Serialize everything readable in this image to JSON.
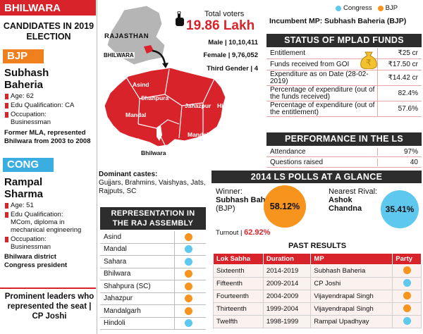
{
  "region": "BHILWARA",
  "candidates_title": "CANDIDATES IN 2019 ELECTION",
  "bjp": {
    "party": "BJP",
    "name": "Subhash Baheria",
    "age": "Age: 62",
    "edu": "Edu Qualification: CA",
    "occ_label": "Occupation:",
    "occ": "Businessman",
    "note": "Former MLA, represented Bhilwara from 2003 to 2008"
  },
  "cong": {
    "party": "CONG",
    "name": "Rampal Sharma",
    "age": "Age: 51",
    "edu_label": "Edu Qualification:",
    "edu": "MCom, diploma in mechanical engineering",
    "occ_label": "Occupation:",
    "occ": "Businessman",
    "note": "Bhilwara district Congress president"
  },
  "leaders": "Prominent leaders who represented the seat | CP Joshi",
  "map": {
    "state": "RAJASTHAN",
    "district": "BHILWARA",
    "areas": [
      "Asind",
      "Shahpura",
      "Jahazpur",
      "Hindoli",
      "Mandal",
      "Mandalgarh",
      "Sahara",
      "Bhilwara"
    ]
  },
  "voters": {
    "label": "Total voters",
    "value": "19.86 Lakh",
    "male": "Male | 10,10,411",
    "female": "Female | 9,76,052",
    "third": "Third Gender | 4"
  },
  "castes": {
    "label": "Dominant castes:",
    "list": "Gujjars, Brahmins, Vaishyas, Jats, Rajputs, SC"
  },
  "assembly": {
    "title": "REPRESENTATION IN THE RAJ ASSEMBLY",
    "rows": [
      {
        "name": "Asind",
        "party": "BJP"
      },
      {
        "name": "Mandal",
        "party": "Congress"
      },
      {
        "name": "Sahara",
        "party": "Congress"
      },
      {
        "name": "Bhilwara",
        "party": "BJP"
      },
      {
        "name": "Shahpura (SC)",
        "party": "BJP"
      },
      {
        "name": "Jahazpur",
        "party": "BJP"
      },
      {
        "name": "Mandalgarh",
        "party": "BJP"
      },
      {
        "name": "Hindoli",
        "party": "Congress"
      }
    ]
  },
  "legend": {
    "congress": "Congress",
    "bjp": "BJP"
  },
  "colors": {
    "congress": "#5ec8ef",
    "bjp": "#f7941d",
    "red": "#d8232a",
    "dark": "#2d2d2d"
  },
  "incumbent": "Incumbent MP: Subhash Baheria (BJP)",
  "mplad": {
    "title": "STATUS OF MPLAD FUNDS",
    "rows": [
      {
        "k": "Entitlement",
        "v": "₹25 cr"
      },
      {
        "k": "Funds received from GOI",
        "v": "₹17.50 cr"
      },
      {
        "k": "Expenditure as on Date (28-02-2019)",
        "v": "₹14.42 cr"
      },
      {
        "k": "Percentage of expenditure (out of the funds received)",
        "v": "82.4%"
      },
      {
        "k": "Percentage of expenditure (out of the entitlement)",
        "v": "57.6%"
      }
    ]
  },
  "performance": {
    "title": "PERFORMANCE IN THE LS",
    "rows": [
      {
        "k": "Attendance",
        "v": "97%"
      },
      {
        "k": "Questions raised",
        "v": "40"
      }
    ]
  },
  "polls": {
    "title": "2014 LS POLLS AT A GLANCE",
    "winner_label": "Winner:",
    "winner": "Subhash Baheria",
    "winner_party": "(BJP)",
    "winner_pct": "58.12%",
    "rival_label": "Nearest Rival:",
    "rival": "Ashok Chandna",
    "rival_pct": "35.41%",
    "turnout_label": "Turnout |",
    "turnout": "62.92%"
  },
  "past": {
    "title": "PAST RESULTS",
    "headers": [
      "Lok Sabha",
      "Duration",
      "MP",
      "Party"
    ],
    "rows": [
      {
        "ls": "Sixteenth",
        "dur": "2014-2019",
        "mp": "Subhash Baheria",
        "party": "BJP"
      },
      {
        "ls": "Fifteenth",
        "dur": "2009-2014",
        "mp": "CP Joshi",
        "party": "Congress"
      },
      {
        "ls": "Fourteenth",
        "dur": "2004-2009",
        "mp": "Vijayendrapal Singh",
        "party": "BJP"
      },
      {
        "ls": "Thirteenth",
        "dur": "1999-2004",
        "mp": "Vijayendrapal Singh",
        "party": "BJP"
      },
      {
        "ls": "Twelfth",
        "dur": "1998-1999",
        "mp": "Rampal Upadhyay",
        "party": "Congress"
      }
    ]
  }
}
